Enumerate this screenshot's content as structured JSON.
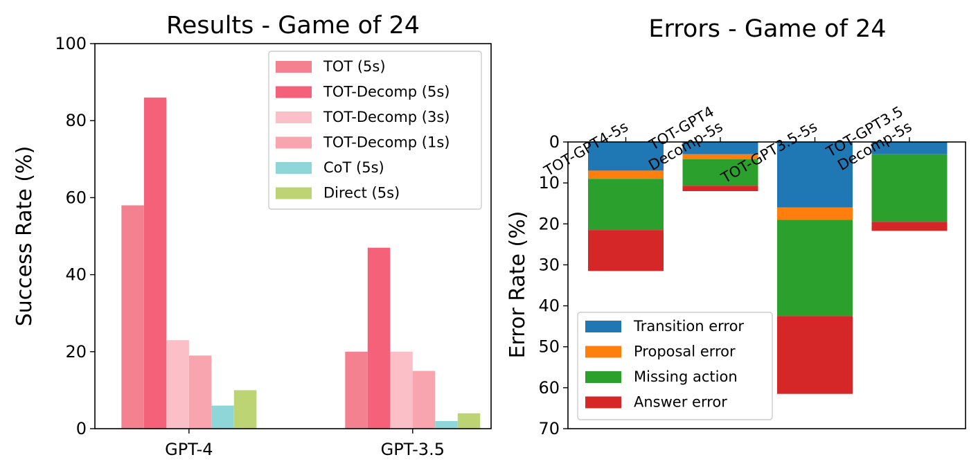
{
  "chart_data": [
    {
      "type": "bar",
      "title": "Results - Game of 24",
      "xlabel": "",
      "ylabel": "Success Rate (%)",
      "ylim": [
        0,
        100
      ],
      "yticks": [
        0,
        20,
        40,
        60,
        80,
        100
      ],
      "categories": [
        "GPT-4",
        "GPT-3.5"
      ],
      "legend_position": "top-right",
      "grid": false,
      "series": [
        {
          "name": "TOT (5s)",
          "values": [
            58,
            20
          ],
          "color": "#f4818f"
        },
        {
          "name": "TOT-Decomp (5s)",
          "values": [
            86,
            47
          ],
          "color": "#f46178"
        },
        {
          "name": "TOT-Decomp (3s)",
          "values": [
            23,
            20
          ],
          "color": "#fbbfc8"
        },
        {
          "name": "TOT-Decomp (1s)",
          "values": [
            19,
            15
          ],
          "color": "#f8a5b0"
        },
        {
          "name": "CoT (5s)",
          "values": [
            6,
            2
          ],
          "color": "#8fd6d9"
        },
        {
          "name": "Direct (5s)",
          "values": [
            10,
            4
          ],
          "color": "#bdd474"
        }
      ]
    },
    {
      "type": "bar",
      "stacked": true,
      "title": "Errors - Game of 24",
      "xlabel": "",
      "ylabel": "Error Rate (%)",
      "ylim": [
        70,
        0
      ],
      "yaxis_inverted": true,
      "yticks": [
        0,
        10,
        20,
        30,
        40,
        50,
        60,
        70
      ],
      "x_ticks_on_top": true,
      "categories": [
        "TOT-GPT4-5s",
        "TOT-GPT4\nDecomp-5s",
        "TOT-GPT3.5-5s",
        "TOT-GPT3.5\nDecomp-5s"
      ],
      "legend_position": "lower-left",
      "grid": false,
      "series": [
        {
          "name": "Transition error",
          "values": [
            7,
            3,
            16,
            3
          ],
          "color": "#1f77b4"
        },
        {
          "name": "Proposal error",
          "values": [
            2,
            1.2,
            3,
            0
          ],
          "color": "#ff7f0e"
        },
        {
          "name": "Missing action",
          "values": [
            12.5,
            6.5,
            23.5,
            16.5
          ],
          "color": "#2ca02c"
        },
        {
          "name": "Answer error",
          "values": [
            10,
            1.3,
            19,
            2.2
          ],
          "color": "#d62728"
        }
      ]
    }
  ]
}
